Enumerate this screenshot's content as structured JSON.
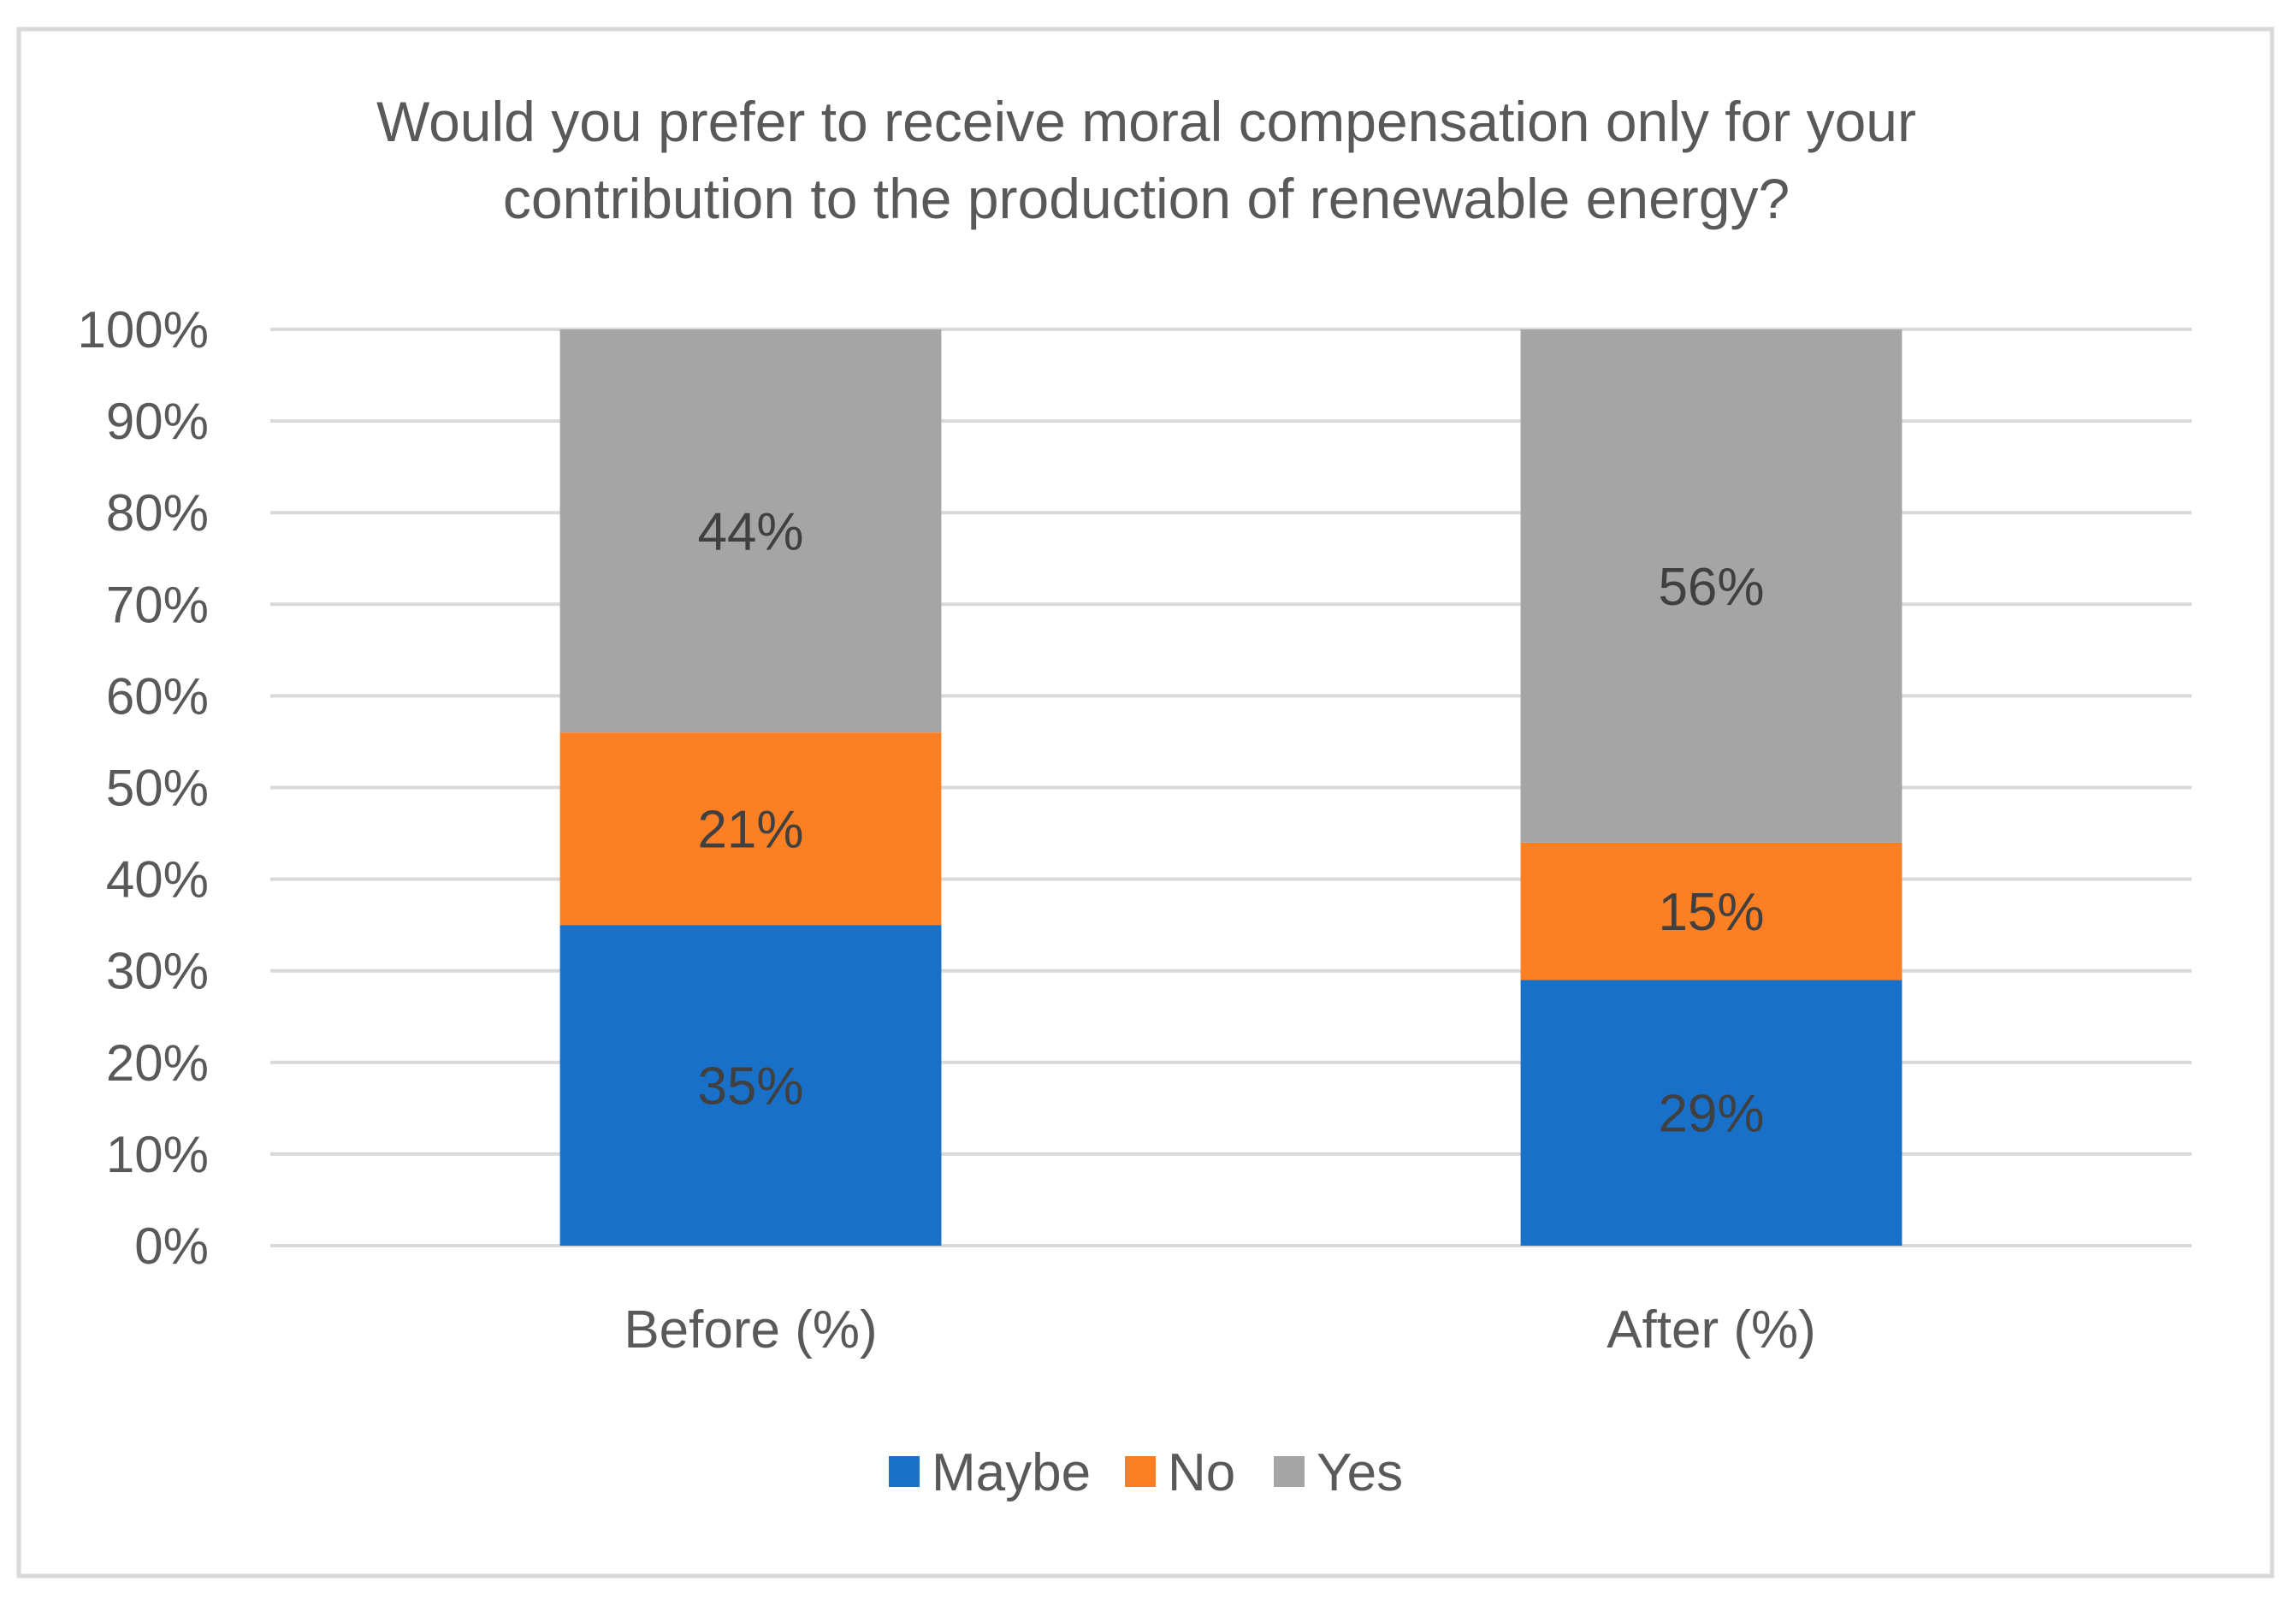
{
  "chart_data": {
    "type": "bar",
    "stacked": true,
    "title_lines": [
      "Would you prefer to receive moral compensation only for your",
      "contribution to the production of renewable energy?"
    ],
    "xlabel": "",
    "ylabel": "",
    "categories": [
      "Before (%)",
      "After (%)"
    ],
    "y_ticks": [
      "0%",
      "10%",
      "20%",
      "30%",
      "40%",
      "50%",
      "60%",
      "70%",
      "80%",
      "90%",
      "100%"
    ],
    "ylim": [
      0,
      100
    ],
    "grid": true,
    "legend_position": "bottom",
    "series": [
      {
        "name": "Maybe",
        "values": [
          35,
          29
        ],
        "labels": [
          "35%",
          "29%"
        ],
        "color": "#1870c9"
      },
      {
        "name": "No",
        "values": [
          21,
          15
        ],
        "labels": [
          "21%",
          "15%"
        ],
        "color": "#fd7f23"
      },
      {
        "name": "Yes",
        "values": [
          44,
          56
        ],
        "labels": [
          "44%",
          "56%"
        ],
        "color": "#a5a5a5"
      }
    ]
  }
}
